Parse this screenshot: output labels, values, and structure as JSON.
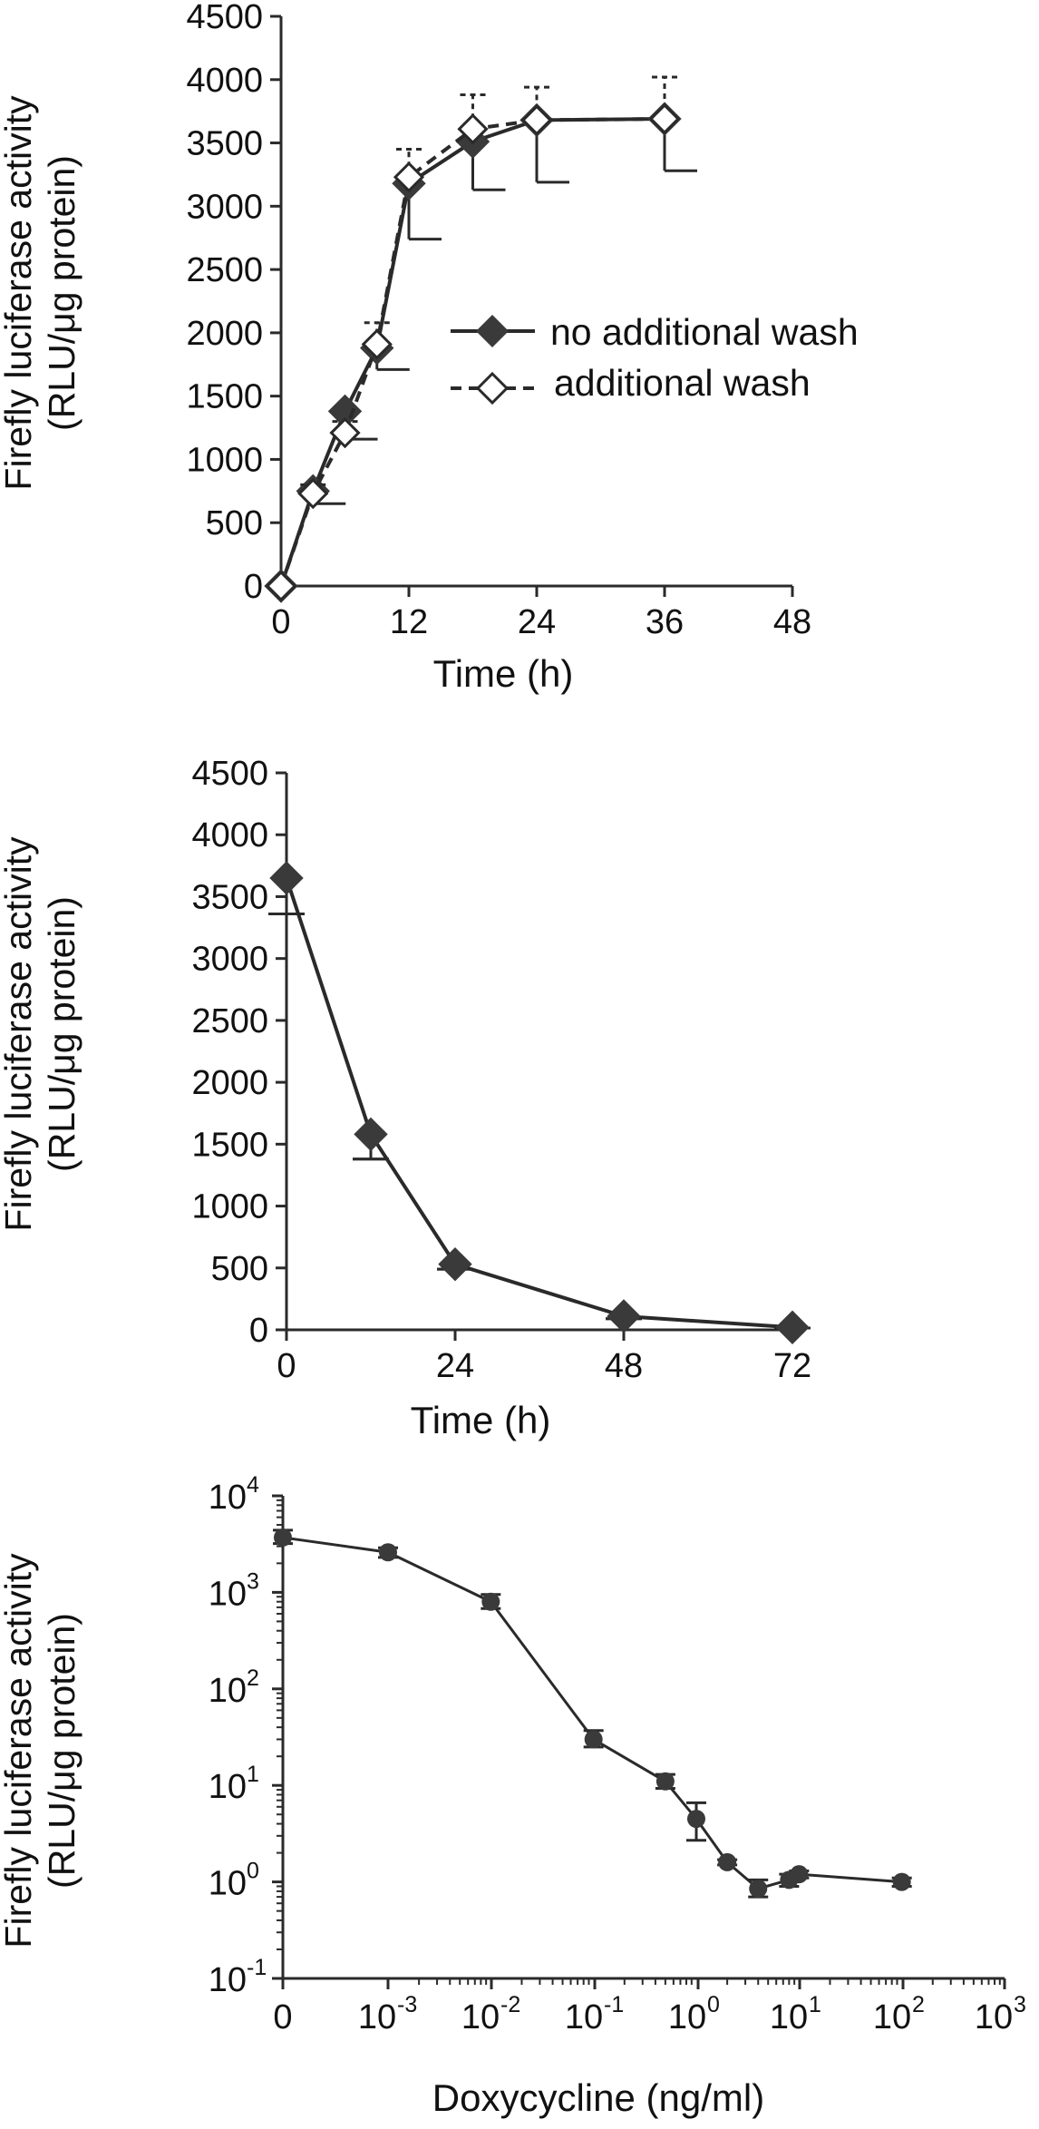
{
  "chart_data": [
    {
      "type": "line",
      "xlabel": "Time (h)",
      "ylabel_line1": "Firefly luciferase activity",
      "ylabel_line2": "(RLU/μg protein)",
      "xlim": [
        0,
        48
      ],
      "ylim": [
        0,
        4500
      ],
      "xticks": [
        "0",
        "12",
        "24",
        "36",
        "48"
      ],
      "yticks": [
        "0",
        "500",
        "1000",
        "1500",
        "2000",
        "2500",
        "3000",
        "3500",
        "4000",
        "4500"
      ],
      "legend_position": "center-right",
      "series": [
        {
          "name": "no additional wash",
          "style": "solid, filled diamond",
          "color": "#3a3a3a",
          "points": [
            {
              "x": 0,
              "y": 0,
              "err": 0
            },
            {
              "x": 3,
              "y": 750,
              "err": 100
            },
            {
              "x": 6,
              "y": 1380,
              "err": 220
            },
            {
              "x": 9,
              "y": 1880,
              "err": 170
            },
            {
              "x": 12,
              "y": 3180,
              "err": 440
            },
            {
              "x": 18,
              "y": 3510,
              "err": 380
            },
            {
              "x": 24,
              "y": 3680,
              "err": 490
            },
            {
              "x": 36,
              "y": 3690,
              "err": 410
            }
          ]
        },
        {
          "name": "additional wash",
          "style": "dashed, open diamond",
          "color": "#3a3a3a",
          "points": [
            {
              "x": 0,
              "y": 0,
              "err": 0
            },
            {
              "x": 3,
              "y": 730,
              "err": 70
            },
            {
              "x": 6,
              "y": 1210,
              "err": 90
            },
            {
              "x": 9,
              "y": 1910,
              "err": 170
            },
            {
              "x": 12,
              "y": 3230,
              "err": 220
            },
            {
              "x": 18,
              "y": 3610,
              "err": 270
            },
            {
              "x": 24,
              "y": 3680,
              "err": 260
            },
            {
              "x": 36,
              "y": 3690,
              "err": 330
            }
          ]
        }
      ]
    },
    {
      "type": "line",
      "xlabel": "Time (h)",
      "ylabel_line1": "Firefly luciferase activity",
      "ylabel_line2": "(RLU/μg protein)",
      "xlim": [
        0,
        72
      ],
      "ylim": [
        0,
        4500
      ],
      "xticks": [
        "0",
        "24",
        "48",
        "72"
      ],
      "yticks": [
        "0",
        "500",
        "1000",
        "1500",
        "2000",
        "2500",
        "3000",
        "3500",
        "4000",
        "4500"
      ],
      "series": [
        {
          "name": "",
          "color": "#3a3a3a",
          "points": [
            {
              "x": 0,
              "y": 3650,
              "err": 290
            },
            {
              "x": 12,
              "y": 1580,
              "err": 200
            },
            {
              "x": 24,
              "y": 530,
              "err": 40
            },
            {
              "x": 48,
              "y": 110,
              "err": 20
            },
            {
              "x": 72,
              "y": 20,
              "err": 5
            }
          ]
        }
      ]
    },
    {
      "type": "line",
      "xlabel": "Doxycycline (ng/ml)",
      "ylabel_line1": "Firefly luciferase activity",
      "ylabel_line2": "(RLU/μg protein)",
      "x_scale": "log (with 0 at left)",
      "y_scale": "log",
      "xlim": [
        0.0001,
        1000
      ],
      "ylim": [
        0.1,
        10000
      ],
      "xticks": [
        {
          "base": "0",
          "exp": ""
        },
        {
          "base": "10",
          "exp": "-3"
        },
        {
          "base": "10",
          "exp": "-2"
        },
        {
          "base": "10",
          "exp": "-1"
        },
        {
          "base": "10",
          "exp": "0"
        },
        {
          "base": "10",
          "exp": "1"
        },
        {
          "base": "10",
          "exp": "2"
        },
        {
          "base": "10",
          "exp": "3"
        }
      ],
      "yticks": [
        {
          "base": "10",
          "exp": "-1"
        },
        {
          "base": "10",
          "exp": "0"
        },
        {
          "base": "10",
          "exp": "1"
        },
        {
          "base": "10",
          "exp": "2"
        },
        {
          "base": "10",
          "exp": "3"
        },
        {
          "base": "10",
          "exp": "4"
        }
      ],
      "series": [
        {
          "name": "",
          "color": "#3a3a3a",
          "points": [
            {
              "x": 0,
              "y": 3700,
              "hi": 4400,
              "lo": 3200
            },
            {
              "x": 0.001,
              "y": 2600,
              "hi": 2900,
              "lo": 2300
            },
            {
              "x": 0.01,
              "y": 800,
              "hi": 950,
              "lo": 680
            },
            {
              "x": 0.1,
              "y": 30,
              "hi": 37,
              "lo": 25
            },
            {
              "x": 0.5,
              "y": 11,
              "hi": 13,
              "lo": 9.3
            },
            {
              "x": 1,
              "y": 4.5,
              "hi": 6.6,
              "lo": 2.7
            },
            {
              "x": 2,
              "y": 1.6,
              "hi": 1.7,
              "lo": 1.5
            },
            {
              "x": 4,
              "y": 0.85,
              "hi": 1.05,
              "lo": 0.7
            },
            {
              "x": 8,
              "y": 1.05,
              "hi": 1.2,
              "lo": 0.9
            },
            {
              "x": 10,
              "y": 1.2,
              "hi": 1.3,
              "lo": 1.1
            },
            {
              "x": 100,
              "y": 1.0,
              "hi": 1.1,
              "lo": 0.9
            }
          ]
        }
      ]
    }
  ]
}
